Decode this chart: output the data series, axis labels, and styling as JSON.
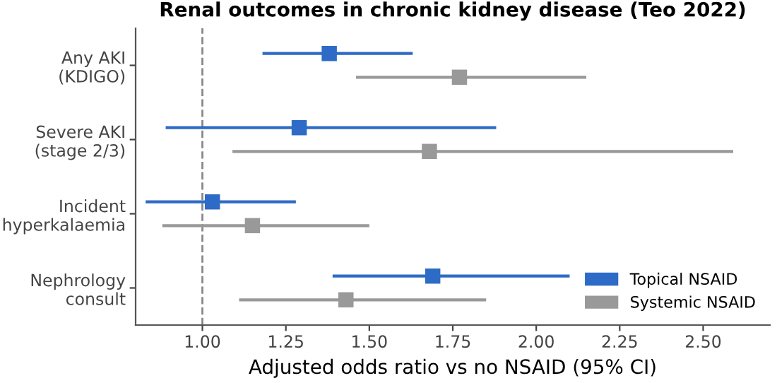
{
  "chart_data": {
    "type": "scatter",
    "orientation": "horizontal",
    "title": "Renal outcomes in chronic kidney disease (Teo 2022)",
    "xlabel": "Adjusted odds ratio vs no NSAID (95% CI)",
    "categories": [
      "Any AKI\n(KDIGO)",
      "Severe AKI\n(stage 2/3)",
      "Incident\nhyperkalaemia",
      "Nephrology\nconsult"
    ],
    "series": [
      {
        "name": "Topical NSAID",
        "color": "#2e6bc6",
        "values": [
          1.38,
          1.29,
          1.03,
          1.69
        ],
        "errors": [
          [
            1.18,
            1.63
          ],
          [
            0.89,
            1.88
          ],
          [
            0.83,
            1.28
          ],
          [
            1.39,
            2.1
          ]
        ]
      },
      {
        "name": "Systemic NSAID",
        "color": "#999999",
        "values": [
          1.77,
          1.68,
          1.15,
          1.43
        ],
        "errors": [
          [
            1.46,
            2.15
          ],
          [
            1.09,
            2.59
          ],
          [
            0.88,
            1.5
          ],
          [
            1.11,
            1.85
          ]
        ]
      }
    ],
    "xlim": [
      0.8,
      2.7
    ],
    "xticks": [
      {
        "value": 1,
        "label": "1.00"
      },
      {
        "value": 1.25,
        "label": "1.25"
      },
      {
        "value": 1.5,
        "label": "1.50"
      },
      {
        "value": 1.75,
        "label": "1.75"
      },
      {
        "value": 2,
        "label": "2.00"
      },
      {
        "value": 2.25,
        "label": "2.25"
      },
      {
        "value": 2.5,
        "label": "2.50"
      }
    ],
    "ref_lines": [
      {
        "axis": "x",
        "value": 1,
        "color": "#888888",
        "line_style": "dashed"
      }
    ],
    "marker": "square",
    "grid": false,
    "legend": "bottom right"
  }
}
